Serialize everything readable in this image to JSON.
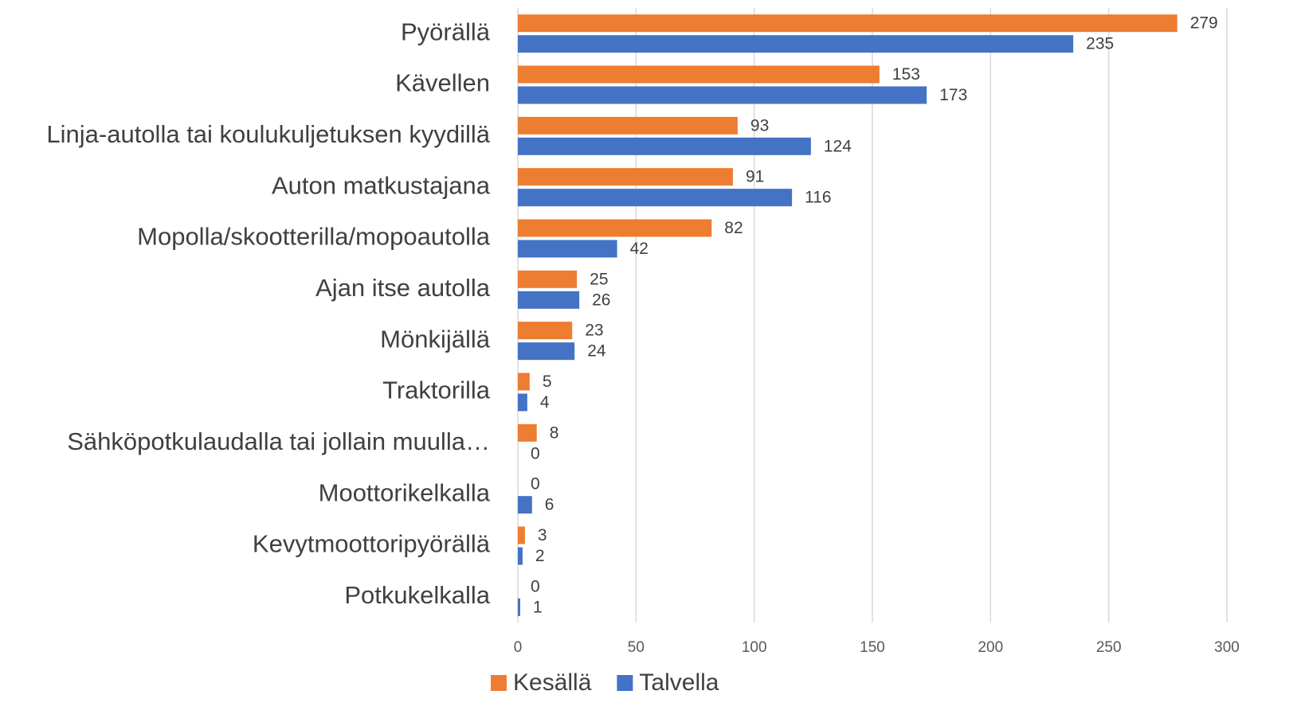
{
  "chart_data": {
    "type": "bar",
    "orientation": "horizontal",
    "categories": [
      "Pyörällä",
      "Kävellen",
      "Linja-autolla tai koulukuljetuksen kyydillä",
      "Auton matkustajana",
      "Mopolla/skootterilla/mopoautolla",
      "Ajan itse autolla",
      "Mönkijällä",
      "Traktorilla",
      "Sähköpotkulaudalla tai jollain muulla…",
      "Moottorikelkalla",
      "Kevytmoottoripyörällä",
      "Potkukelkalla"
    ],
    "series": [
      {
        "name": "Kesällä",
        "color": "#ed7d31",
        "values": [
          279,
          153,
          93,
          91,
          82,
          25,
          23,
          5,
          8,
          0,
          3,
          0
        ]
      },
      {
        "name": "Talvella",
        "color": "#4472c4",
        "values": [
          235,
          173,
          124,
          116,
          42,
          26,
          24,
          4,
          0,
          6,
          2,
          1
        ]
      }
    ],
    "xlim": [
      0,
      300
    ],
    "xticks": [
      0,
      50,
      100,
      150,
      200,
      250,
      300
    ],
    "grid": true,
    "legend": "bottom",
    "data_labels": true
  }
}
